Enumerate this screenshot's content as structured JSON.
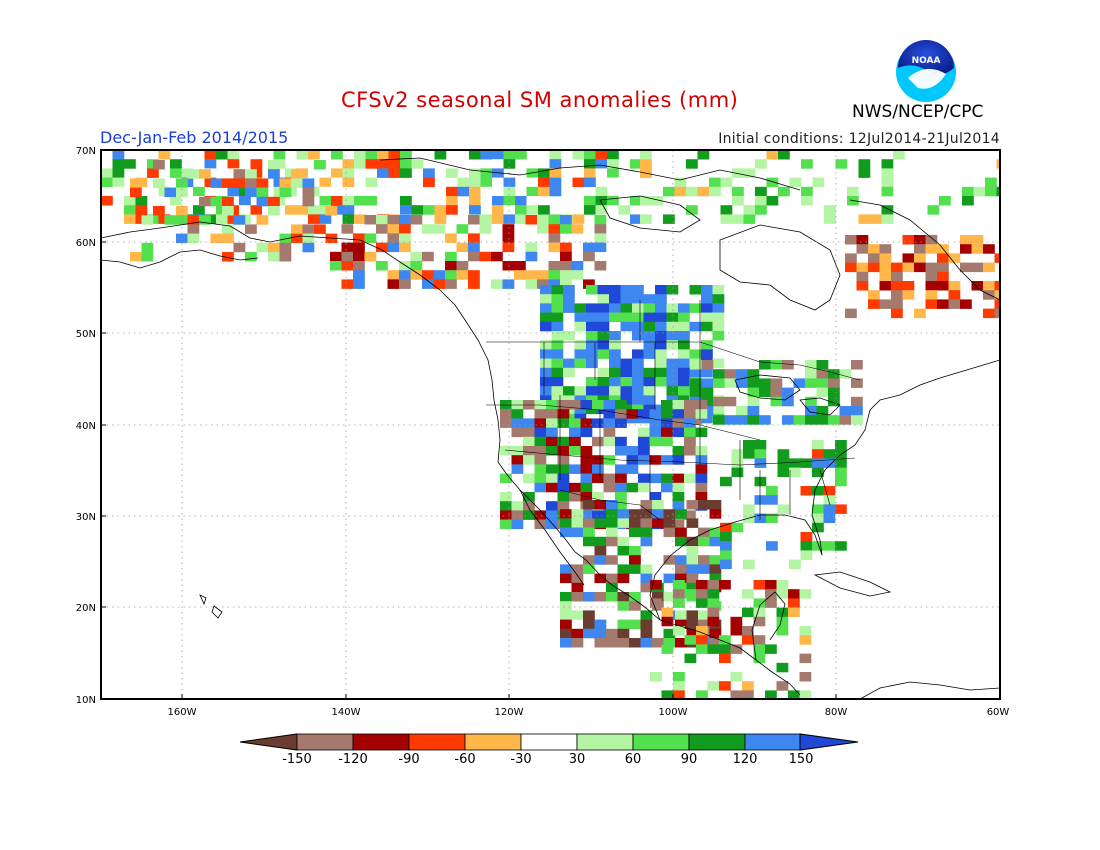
{
  "title": "CFSv2 seasonal SM anomalies (mm)",
  "season": "Dec-Jan-Feb 2014/2015",
  "initial_conditions": "Initial conditions: 12Jul2014-21Jul2014",
  "agency": "NWS/NCEP/CPC",
  "logo_text": "NOAA",
  "map": {
    "lat_labels": [
      "70N",
      "60N",
      "50N",
      "40N",
      "30N",
      "20N",
      "10N"
    ],
    "lon_labels": [
      "160W",
      "140W",
      "120W",
      "100W",
      "80W",
      "60W"
    ]
  },
  "colorbar": {
    "labels": [
      "-150",
      "-120",
      "-90",
      "-60",
      "-30",
      "30",
      "60",
      "90",
      "120",
      "150"
    ],
    "colors": [
      "#6b3d30",
      "#a57a6e",
      "#a50000",
      "#ff3a00",
      "#ffb74a",
      "#ffffff",
      "#b4f5a3",
      "#52e04e",
      "#129c1e",
      "#3e87f0",
      "#1f48d6"
    ]
  }
}
